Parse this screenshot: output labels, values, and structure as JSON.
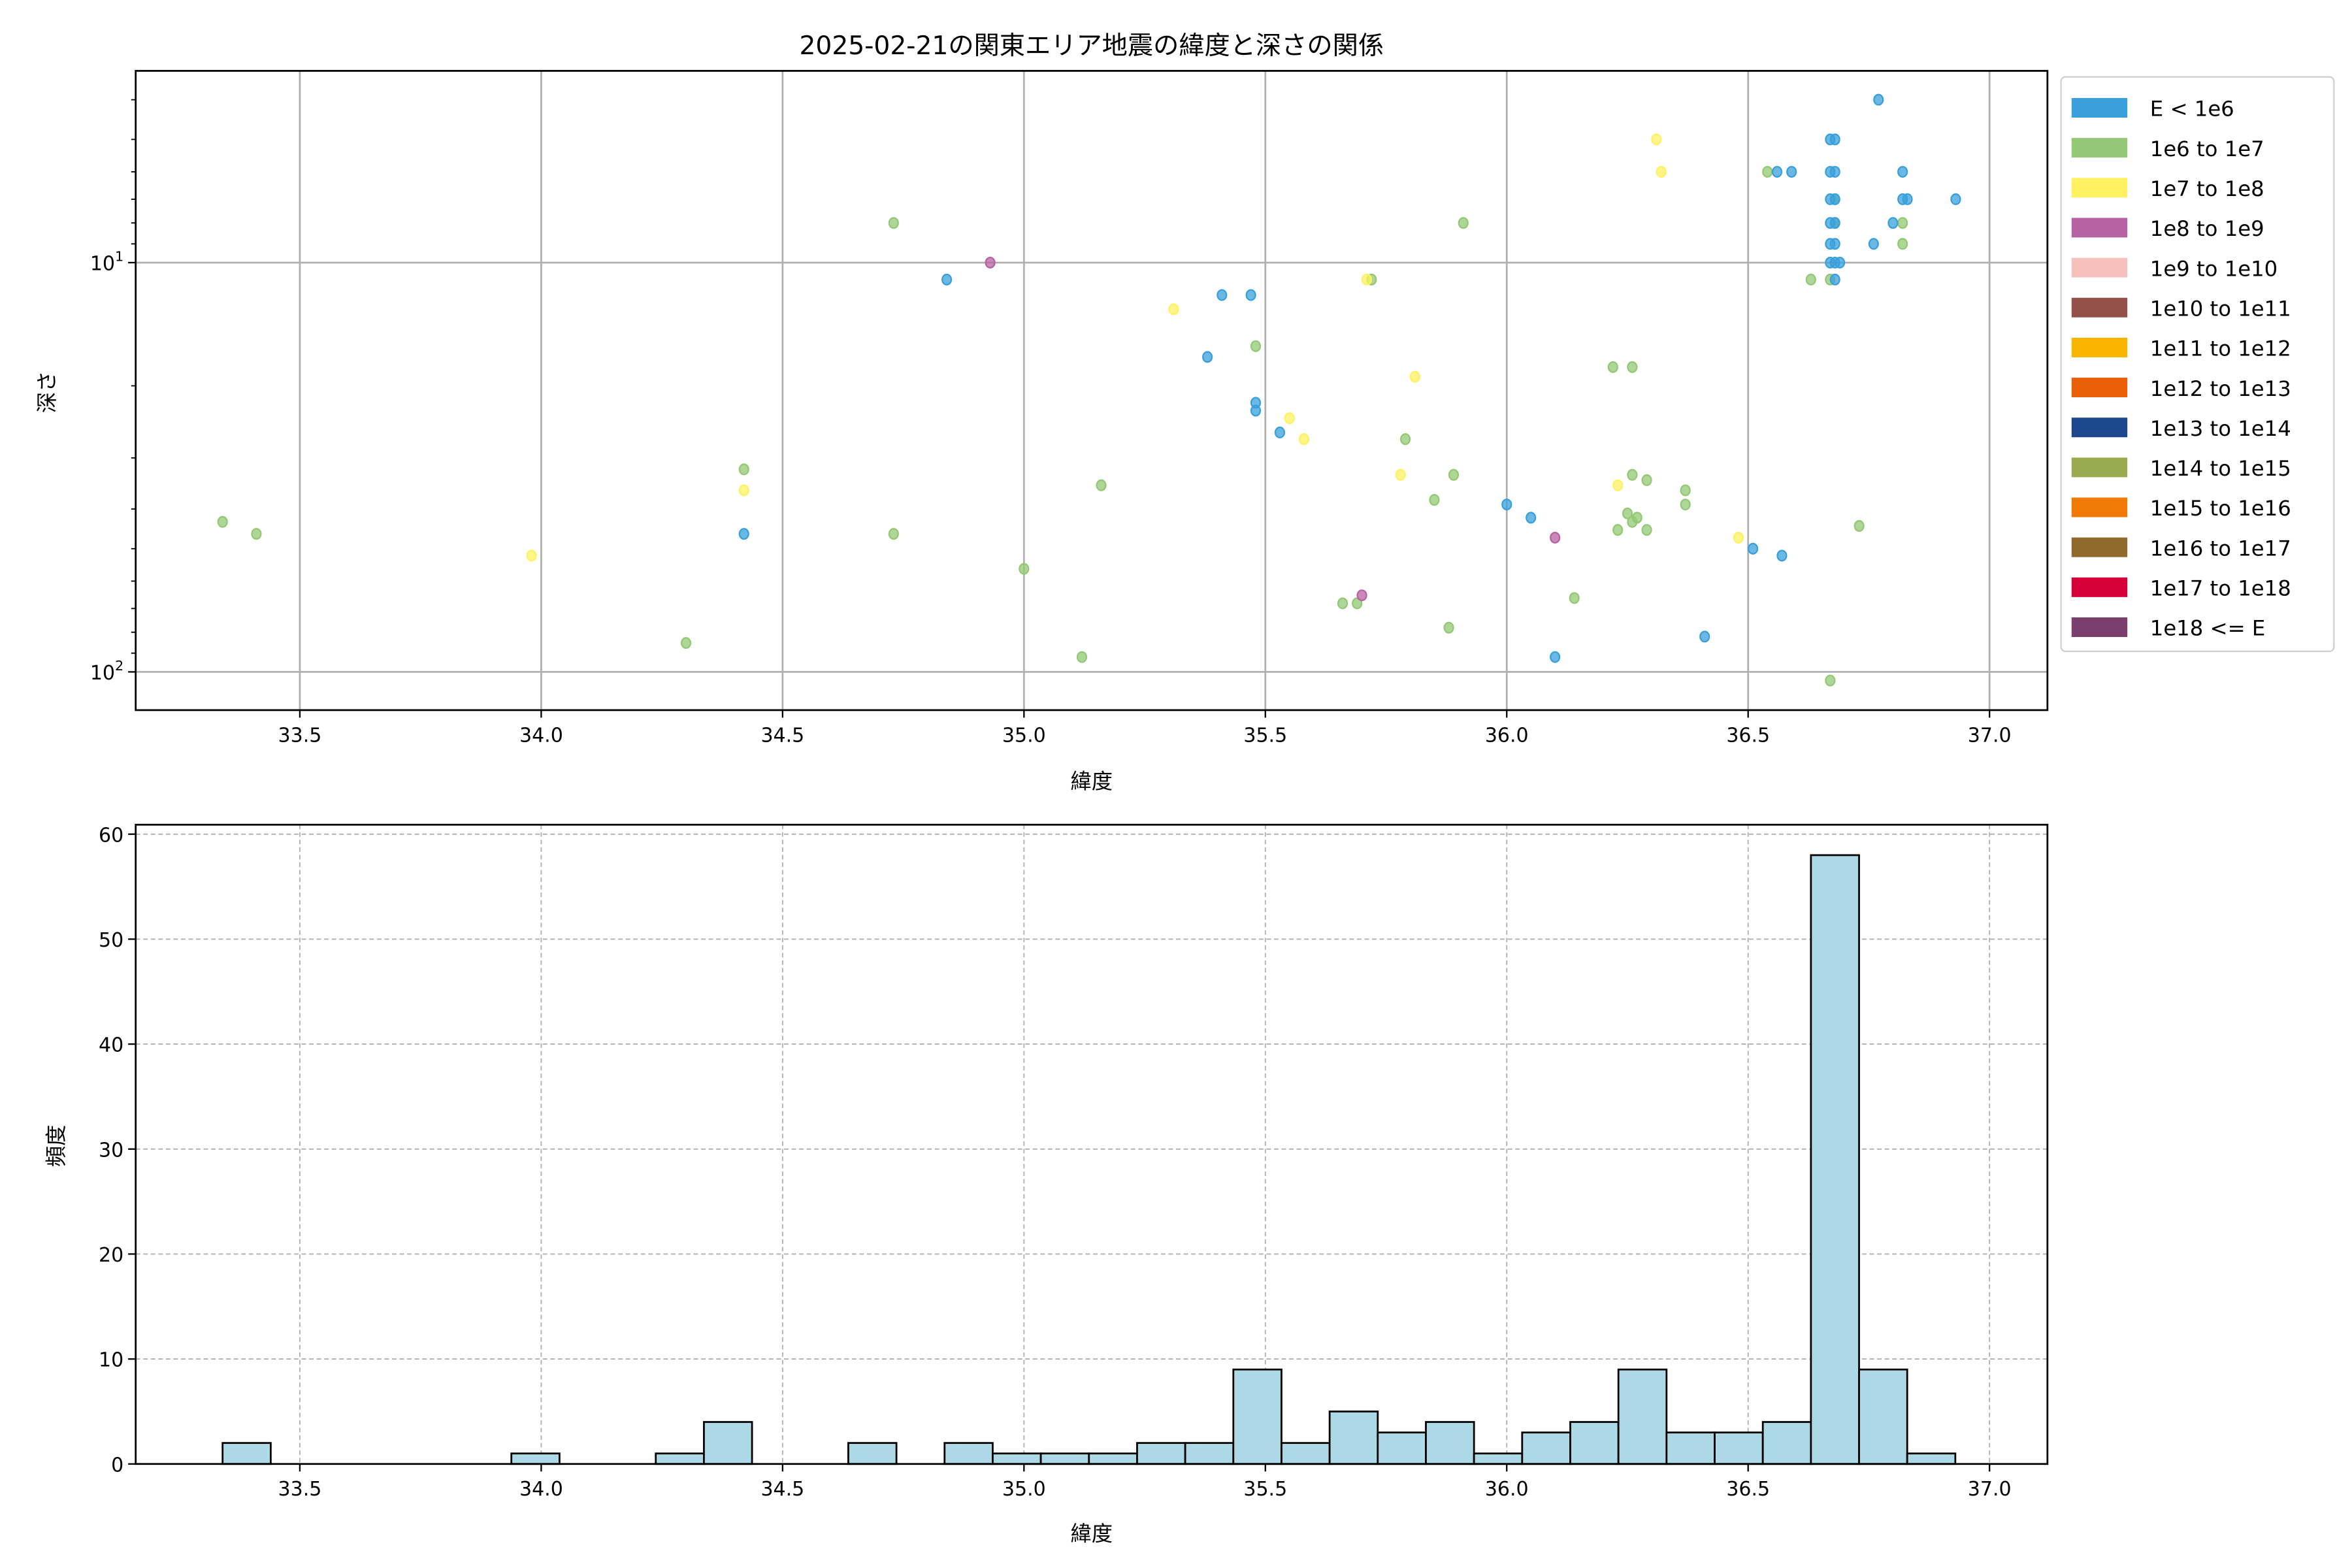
{
  "chart_data": [
    {
      "type": "scatter",
      "title": "2025-02-21の関東エリア地震の緯度と深さの関係",
      "xlabel": "緯度",
      "ylabel": "深さ",
      "xlim": [
        33.16,
        37.12
      ],
      "ylim": [
        3.4,
        124
      ],
      "y_scale": "log",
      "y_inverted": true,
      "grid": true,
      "x_ticks": [
        "33.5",
        "34.0",
        "34.5",
        "35.0",
        "35.5",
        "36.0",
        "36.5",
        "37.0"
      ],
      "y_ticks": [
        {
          "base": "10",
          "exp": "1",
          "value": 10
        },
        {
          "base": "10",
          "exp": "2",
          "value": 100
        }
      ],
      "legend_placement": "outside-right",
      "legend": [
        {
          "label": "E < 1e6",
          "color": "#3aa0dc"
        },
        {
          "label": "1e6 to 1e7",
          "color": "#93c974"
        },
        {
          "label": "1e7 to 1e8",
          "color": "#fff160"
        },
        {
          "label": "1e8 to 1e9",
          "color": "#b862a3"
        },
        {
          "label": "1e9 to 1e10",
          "color": "#f6c0bd"
        },
        {
          "label": "1e10 to 1e11",
          "color": "#925049"
        },
        {
          "label": "1e11 to 1e12",
          "color": "#f7b500"
        },
        {
          "label": "1e12 to 1e13",
          "color": "#eb5f06"
        },
        {
          "label": "1e13 to 1e14",
          "color": "#1c468e"
        },
        {
          "label": "1e14 to 1e15",
          "color": "#9aab4f"
        },
        {
          "label": "1e15 to 1e16",
          "color": "#f07a05"
        },
        {
          "label": "1e16 to 1e17",
          "color": "#906a2b"
        },
        {
          "label": "1e17 to 1e18",
          "color": "#d80039"
        },
        {
          "label": "1e18 <= E",
          "color": "#7b3f6e"
        }
      ],
      "points": [
        [
          33.34,
          43,
          1
        ],
        [
          33.41,
          46,
          1
        ],
        [
          34.3,
          85,
          1
        ],
        [
          34.42,
          32,
          1
        ],
        [
          34.73,
          8,
          1
        ],
        [
          34.73,
          46,
          1
        ],
        [
          35.0,
          56,
          1
        ],
        [
          35.12,
          92,
          1
        ],
        [
          35.16,
          35,
          1
        ],
        [
          35.48,
          16,
          1
        ],
        [
          35.72,
          11,
          1
        ],
        [
          35.66,
          68,
          1
        ],
        [
          35.69,
          68,
          1
        ],
        [
          35.79,
          27,
          1
        ],
        [
          35.85,
          38,
          1
        ],
        [
          35.88,
          78,
          1
        ],
        [
          35.89,
          33,
          1
        ],
        [
          35.91,
          8,
          1
        ],
        [
          36.14,
          66,
          1
        ],
        [
          36.22,
          18,
          1
        ],
        [
          36.26,
          18,
          1
        ],
        [
          36.23,
          45,
          1
        ],
        [
          36.25,
          41,
          1
        ],
        [
          36.26,
          43,
          1
        ],
        [
          36.27,
          42,
          1
        ],
        [
          36.26,
          33,
          1
        ],
        [
          36.29,
          34,
          1
        ],
        [
          36.29,
          45,
          1
        ],
        [
          36.37,
          39,
          1
        ],
        [
          36.37,
          36,
          1
        ],
        [
          36.54,
          6,
          1
        ],
        [
          36.63,
          11,
          1
        ],
        [
          36.67,
          11,
          1
        ],
        [
          36.67,
          105,
          1
        ],
        [
          36.73,
          44,
          1
        ],
        [
          36.82,
          9,
          1
        ],
        [
          36.82,
          8,
          1
        ],
        [
          36.68,
          7,
          1
        ],
        [
          36.68,
          8,
          1
        ],
        [
          33.98,
          52,
          2
        ],
        [
          34.42,
          36,
          2
        ],
        [
          35.31,
          13,
          2
        ],
        [
          35.55,
          24,
          2
        ],
        [
          35.58,
          27,
          2
        ],
        [
          35.71,
          11,
          2
        ],
        [
          35.78,
          33,
          2
        ],
        [
          35.81,
          19,
          2
        ],
        [
          36.23,
          35,
          2
        ],
        [
          36.31,
          5,
          2
        ],
        [
          36.32,
          6,
          2
        ],
        [
          36.48,
          47,
          2
        ],
        [
          34.93,
          10,
          3
        ],
        [
          35.7,
          65,
          3
        ],
        [
          36.1,
          47,
          3
        ],
        [
          34.42,
          46,
          0
        ],
        [
          34.84,
          11,
          0
        ],
        [
          35.38,
          17,
          0
        ],
        [
          35.41,
          12,
          0
        ],
        [
          35.47,
          12,
          0
        ],
        [
          35.48,
          22,
          0
        ],
        [
          35.48,
          23,
          0
        ],
        [
          35.53,
          26,
          0
        ],
        [
          36.0,
          39,
          0
        ],
        [
          36.05,
          42,
          0
        ],
        [
          36.1,
          92,
          0
        ],
        [
          36.41,
          82,
          0
        ],
        [
          36.51,
          50,
          0
        ],
        [
          36.57,
          52,
          0
        ],
        [
          36.56,
          6,
          0
        ],
        [
          36.59,
          6,
          0
        ],
        [
          36.67,
          5,
          0
        ],
        [
          36.68,
          5,
          0
        ],
        [
          36.67,
          6,
          0
        ],
        [
          36.68,
          6,
          0
        ],
        [
          36.67,
          7,
          0
        ],
        [
          36.68,
          7,
          0
        ],
        [
          36.67,
          8,
          0
        ],
        [
          36.68,
          8,
          0
        ],
        [
          36.67,
          9,
          0
        ],
        [
          36.68,
          9,
          0
        ],
        [
          36.67,
          10,
          0
        ],
        [
          36.68,
          10,
          0
        ],
        [
          36.69,
          10,
          0
        ],
        [
          36.68,
          11,
          0
        ],
        [
          36.77,
          4,
          0
        ],
        [
          36.82,
          6,
          0
        ],
        [
          36.82,
          7,
          0
        ],
        [
          36.83,
          7,
          0
        ],
        [
          36.8,
          8,
          0
        ],
        [
          36.76,
          9,
          0
        ],
        [
          36.93,
          7,
          0
        ]
      ]
    },
    {
      "type": "bar",
      "subtype": "histogram",
      "xlabel": "緯度",
      "ylabel": "頻度",
      "xlim": [
        33.16,
        37.12
      ],
      "ylim": [
        0,
        60.9
      ],
      "grid": "dashed",
      "bar_color": "#add8e6",
      "edge_color": "#000000",
      "x_ticks": [
        "33.5",
        "34.0",
        "34.5",
        "35.0",
        "35.5",
        "36.0",
        "36.5",
        "37.0"
      ],
      "y_ticks": [
        "0",
        "10",
        "20",
        "30",
        "40",
        "50",
        "60"
      ],
      "bin_start": 33.34,
      "bin_width": 0.0997,
      "counts": [
        2,
        0,
        0,
        0,
        0,
        0,
        1,
        0,
        0,
        1,
        4,
        0,
        0,
        2,
        0,
        2,
        1,
        1,
        1,
        2,
        2,
        9,
        2,
        5,
        3,
        4,
        1,
        3,
        4,
        9,
        3,
        3,
        4,
        58,
        9,
        1
      ]
    }
  ]
}
